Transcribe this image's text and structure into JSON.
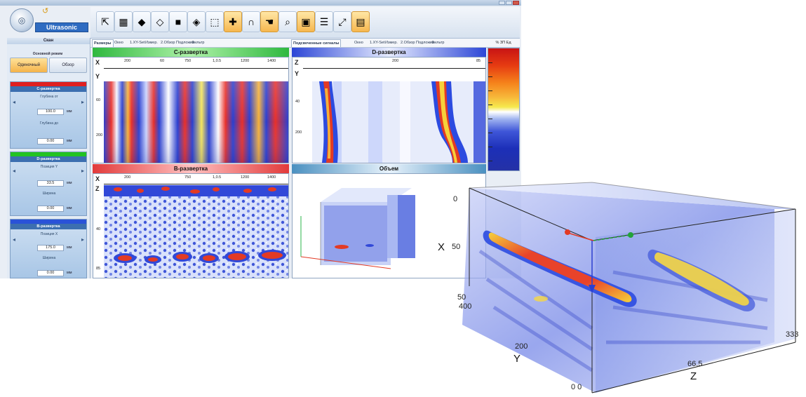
{
  "app": {
    "title": "",
    "logo_text": "Ultrasonic",
    "window_buttons": [
      "minimize",
      "maximize",
      "close"
    ]
  },
  "left_panel": {
    "header": "Скан",
    "mode_title": "Основной режим",
    "mode_buttons": [
      "Одиночный",
      "Обзор"
    ],
    "sections": [
      {
        "title": "С-развертка",
        "bar_color": "#e02020",
        "label1": "Глубина от",
        "value1": "100.0",
        "label2": "Глубина до",
        "value2": "0.00",
        "unit": "мм"
      },
      {
        "title": "D-развертка",
        "bar_color": "#22c322",
        "label1": "Позиция Y",
        "value1": "33.5",
        "label2": "Ширина",
        "value2": "0.00",
        "unit": "мм"
      },
      {
        "title": "B-развертка",
        "bar_color": "#2a52d8",
        "label1": "Позиция X",
        "value1": "175.0",
        "label2": "Ширина",
        "value2": "0.00",
        "unit": "мм"
      }
    ]
  },
  "toolbar": {
    "buttons": [
      {
        "icon": "cursor-icon",
        "glyph": "⇱",
        "active": false
      },
      {
        "icon": "grid-icon",
        "glyph": "▦",
        "active": false
      },
      {
        "icon": "cube-gray-icon",
        "glyph": "◆",
        "active": false
      },
      {
        "icon": "cube-white-icon",
        "glyph": "◇",
        "active": false
      },
      {
        "icon": "cube-dark-icon",
        "glyph": "■",
        "active": false
      },
      {
        "icon": "cube-color-icon",
        "glyph": "◈",
        "active": false
      },
      {
        "icon": "select-icon",
        "glyph": "⬚",
        "active": false
      },
      {
        "icon": "measure-icon",
        "glyph": "✚",
        "active": true
      },
      {
        "icon": "magnet-icon",
        "glyph": "∩",
        "active": false
      },
      {
        "icon": "hand-icon",
        "glyph": "☚",
        "active": true
      },
      {
        "icon": "zoom-icon",
        "glyph": "⌕",
        "active": false
      },
      {
        "icon": "frame-icon",
        "glyph": "▣",
        "active": true
      },
      {
        "icon": "layers-icon",
        "glyph": "☰",
        "active": false
      },
      {
        "icon": "fit-icon",
        "glyph": "⤢",
        "active": false
      },
      {
        "icon": "report-icon",
        "glyph": "▤",
        "active": true
      }
    ]
  },
  "tabs_left": [
    "Размеры",
    "Окно",
    "1.XY-Set",
    "Измер.",
    "2.Обзор",
    "Подложка",
    "Фильтр"
  ],
  "tabs_right": [
    "Подсвеченные сигналы",
    "Окно",
    "1.XY-Set",
    "Измер.",
    "2.Обзор",
    "Подложка",
    "Фильтр"
  ],
  "palette": {
    "header": "%  ЗП  Ед"
  },
  "panels": {
    "c_scan": {
      "title": "С-развертка",
      "title_color": "#37c84a",
      "x_ticks": [
        "0",
        "X",
        "200",
        "60",
        "750",
        "1,0.5",
        "1200",
        "1400"
      ],
      "y_label": "Y",
      "y_ticks": [
        "0",
        "60",
        "200"
      ]
    },
    "d_scan": {
      "title": "D-развертка",
      "title_color": "#3b53d2",
      "x_ticks": [
        "0",
        "Z",
        "200",
        "85"
      ],
      "y_label": "Y",
      "y_ticks": [
        "0",
        "40",
        "200"
      ]
    },
    "b_scan": {
      "title": "B-развертка",
      "title_color": "#e23b3b",
      "x_ticks": [
        "0",
        "X",
        "200",
        "750",
        "1,0.5",
        "1200",
        "1400"
      ],
      "y_label": "Z",
      "y_ticks": [
        "0",
        "40",
        "85"
      ]
    },
    "volume": {
      "title": "Объем",
      "title_color": "#4a90c0"
    }
  },
  "view3d": {
    "labels": {
      "x_axis": "X",
      "x_val": "50",
      "top_left": "0",
      "y_axis": "Y",
      "y_top": "50",
      "y_top2": "400",
      "y_mid": "200",
      "z_axis": "Z",
      "z_mid": "66.5",
      "z_end": "333",
      "origin": "0  0"
    }
  }
}
